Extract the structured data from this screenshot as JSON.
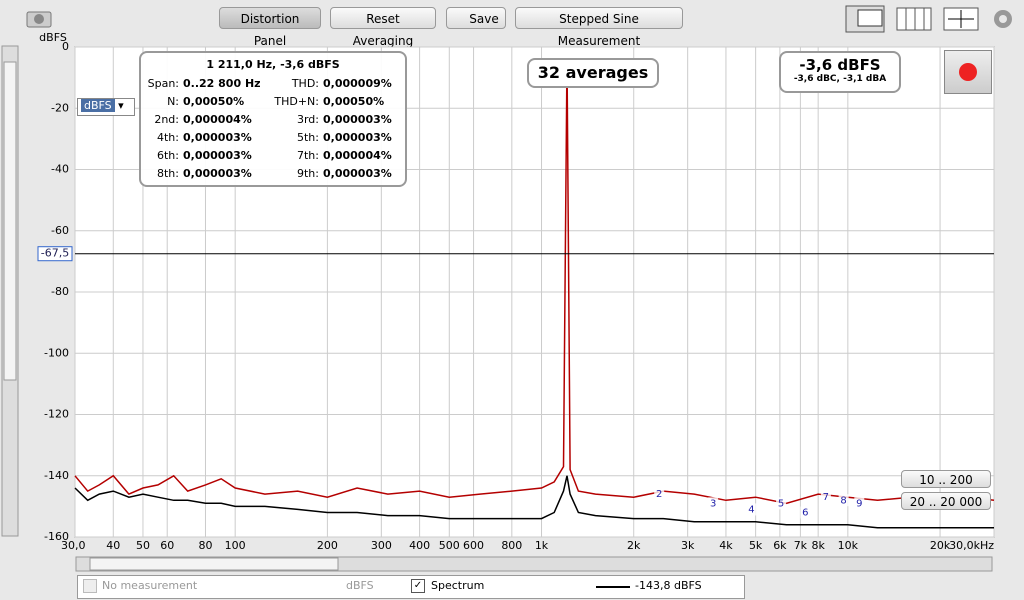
{
  "toolbar": {
    "buttons": [
      "Distortion Panel",
      "Reset Averaging",
      "Save",
      "Stepped Sine Measurement"
    ]
  },
  "readout": {
    "title": "1 211,0 Hz, -3,6 dBFS",
    "rows": [
      [
        "Span:",
        "0..22 800 Hz",
        "THD:",
        "0,000009%"
      ],
      [
        "N:",
        "0,00050%",
        "THD+N:",
        "0,00050%"
      ],
      [
        "2nd:",
        "0,000004%",
        "3rd:",
        "0,000003%"
      ],
      [
        "4th:",
        "0,000003%",
        "5th:",
        "0,000003%"
      ],
      [
        "6th:",
        "0,000003%",
        "7th:",
        "0,000004%"
      ],
      [
        "8th:",
        "0,000003%",
        "9th:",
        "0,000003%"
      ]
    ]
  },
  "averages": "32 averages",
  "level": {
    "main": "-3,6 dBFS",
    "sub": "-3,6 dBC, -3,1 dBA"
  },
  "unit_select": "dBFS",
  "range_buttons": [
    "10 .. 200",
    "20 .. 20 000"
  ],
  "legend": {
    "items": [
      "No measurement",
      "dBFS",
      "Spectrum",
      "-143,8 dBFS"
    ]
  },
  "chart_data": {
    "type": "line",
    "ylabel": "dBFS",
    "xscale": "log",
    "xlim": [
      30,
      30000
    ],
    "ylim": [
      -160,
      0
    ],
    "xticks": [
      {
        "value": 30,
        "label": "30,0"
      },
      40,
      50,
      60,
      80,
      100,
      200,
      300,
      400,
      500,
      600,
      800,
      {
        "value": 1000,
        "label": "1k"
      },
      {
        "value": 2000,
        "label": "2k"
      },
      {
        "value": 3000,
        "label": "3k"
      },
      {
        "value": 4000,
        "label": "4k"
      },
      {
        "value": 5000,
        "label": "5k"
      },
      {
        "value": 6000,
        "label": "6k"
      },
      {
        "value": 7000,
        "label": "7k"
      },
      {
        "value": 8000,
        "label": "8k"
      },
      {
        "value": 10000,
        "label": "10k"
      },
      {
        "value": 20000,
        "label": "20k"
      },
      {
        "value": 30000,
        "label": "30,0kHz"
      }
    ],
    "yticks": [
      0,
      -20,
      -40,
      -60,
      -80,
      -100,
      -120,
      -140,
      -160
    ],
    "cursor": {
      "value": -67.5,
      "label": "-67,5"
    },
    "x": [
      30,
      33,
      36,
      40,
      45,
      50,
      56,
      63,
      70,
      80,
      90,
      100,
      125,
      160,
      200,
      250,
      315,
      400,
      500,
      630,
      800,
      1000,
      1100,
      1180,
      1211,
      1240,
      1320,
      1500,
      2000,
      2500,
      3150,
      4000,
      5000,
      6300,
      8000,
      10000,
      12500,
      16000,
      20000,
      25000,
      30000
    ],
    "series": [
      {
        "color": "#000000",
        "values": [
          -144,
          -148,
          -146,
          -145,
          -147,
          -146,
          -147,
          -148,
          -148,
          -149,
          -149,
          -150,
          -150,
          -151,
          -152,
          -152,
          -153,
          -153,
          -154,
          -154,
          -154,
          -154,
          -152,
          -145,
          -140,
          -146,
          -152,
          -153,
          -154,
          -154,
          -155,
          -155,
          -155,
          -156,
          -156,
          -156,
          -157,
          -157,
          -157,
          -157,
          -157
        ]
      },
      {
        "color": "#b40000",
        "values": [
          -140,
          -145,
          -143,
          -140,
          -146,
          -144,
          -143,
          -140,
          -145,
          -143,
          -141,
          -144,
          -146,
          -145,
          -147,
          -144,
          -146,
          -145,
          -147,
          -146,
          -145,
          -144,
          -142,
          -137,
          -3.6,
          -138,
          -145,
          -146,
          -147,
          -145,
          -146,
          -148,
          -147,
          -149,
          -146,
          -147,
          -148,
          -147,
          -146,
          -147,
          -148
        ]
      }
    ],
    "harmonics": {
      "labels": [
        "2",
        "3",
        "4",
        "5",
        "6",
        "7",
        "8",
        "9"
      ],
      "x": [
        2422,
        3633,
        4844,
        6055,
        7266,
        8477,
        9688,
        10899
      ],
      "y": [
        -146,
        -149,
        -151,
        -149,
        -152,
        -147,
        -148,
        -149
      ]
    }
  }
}
